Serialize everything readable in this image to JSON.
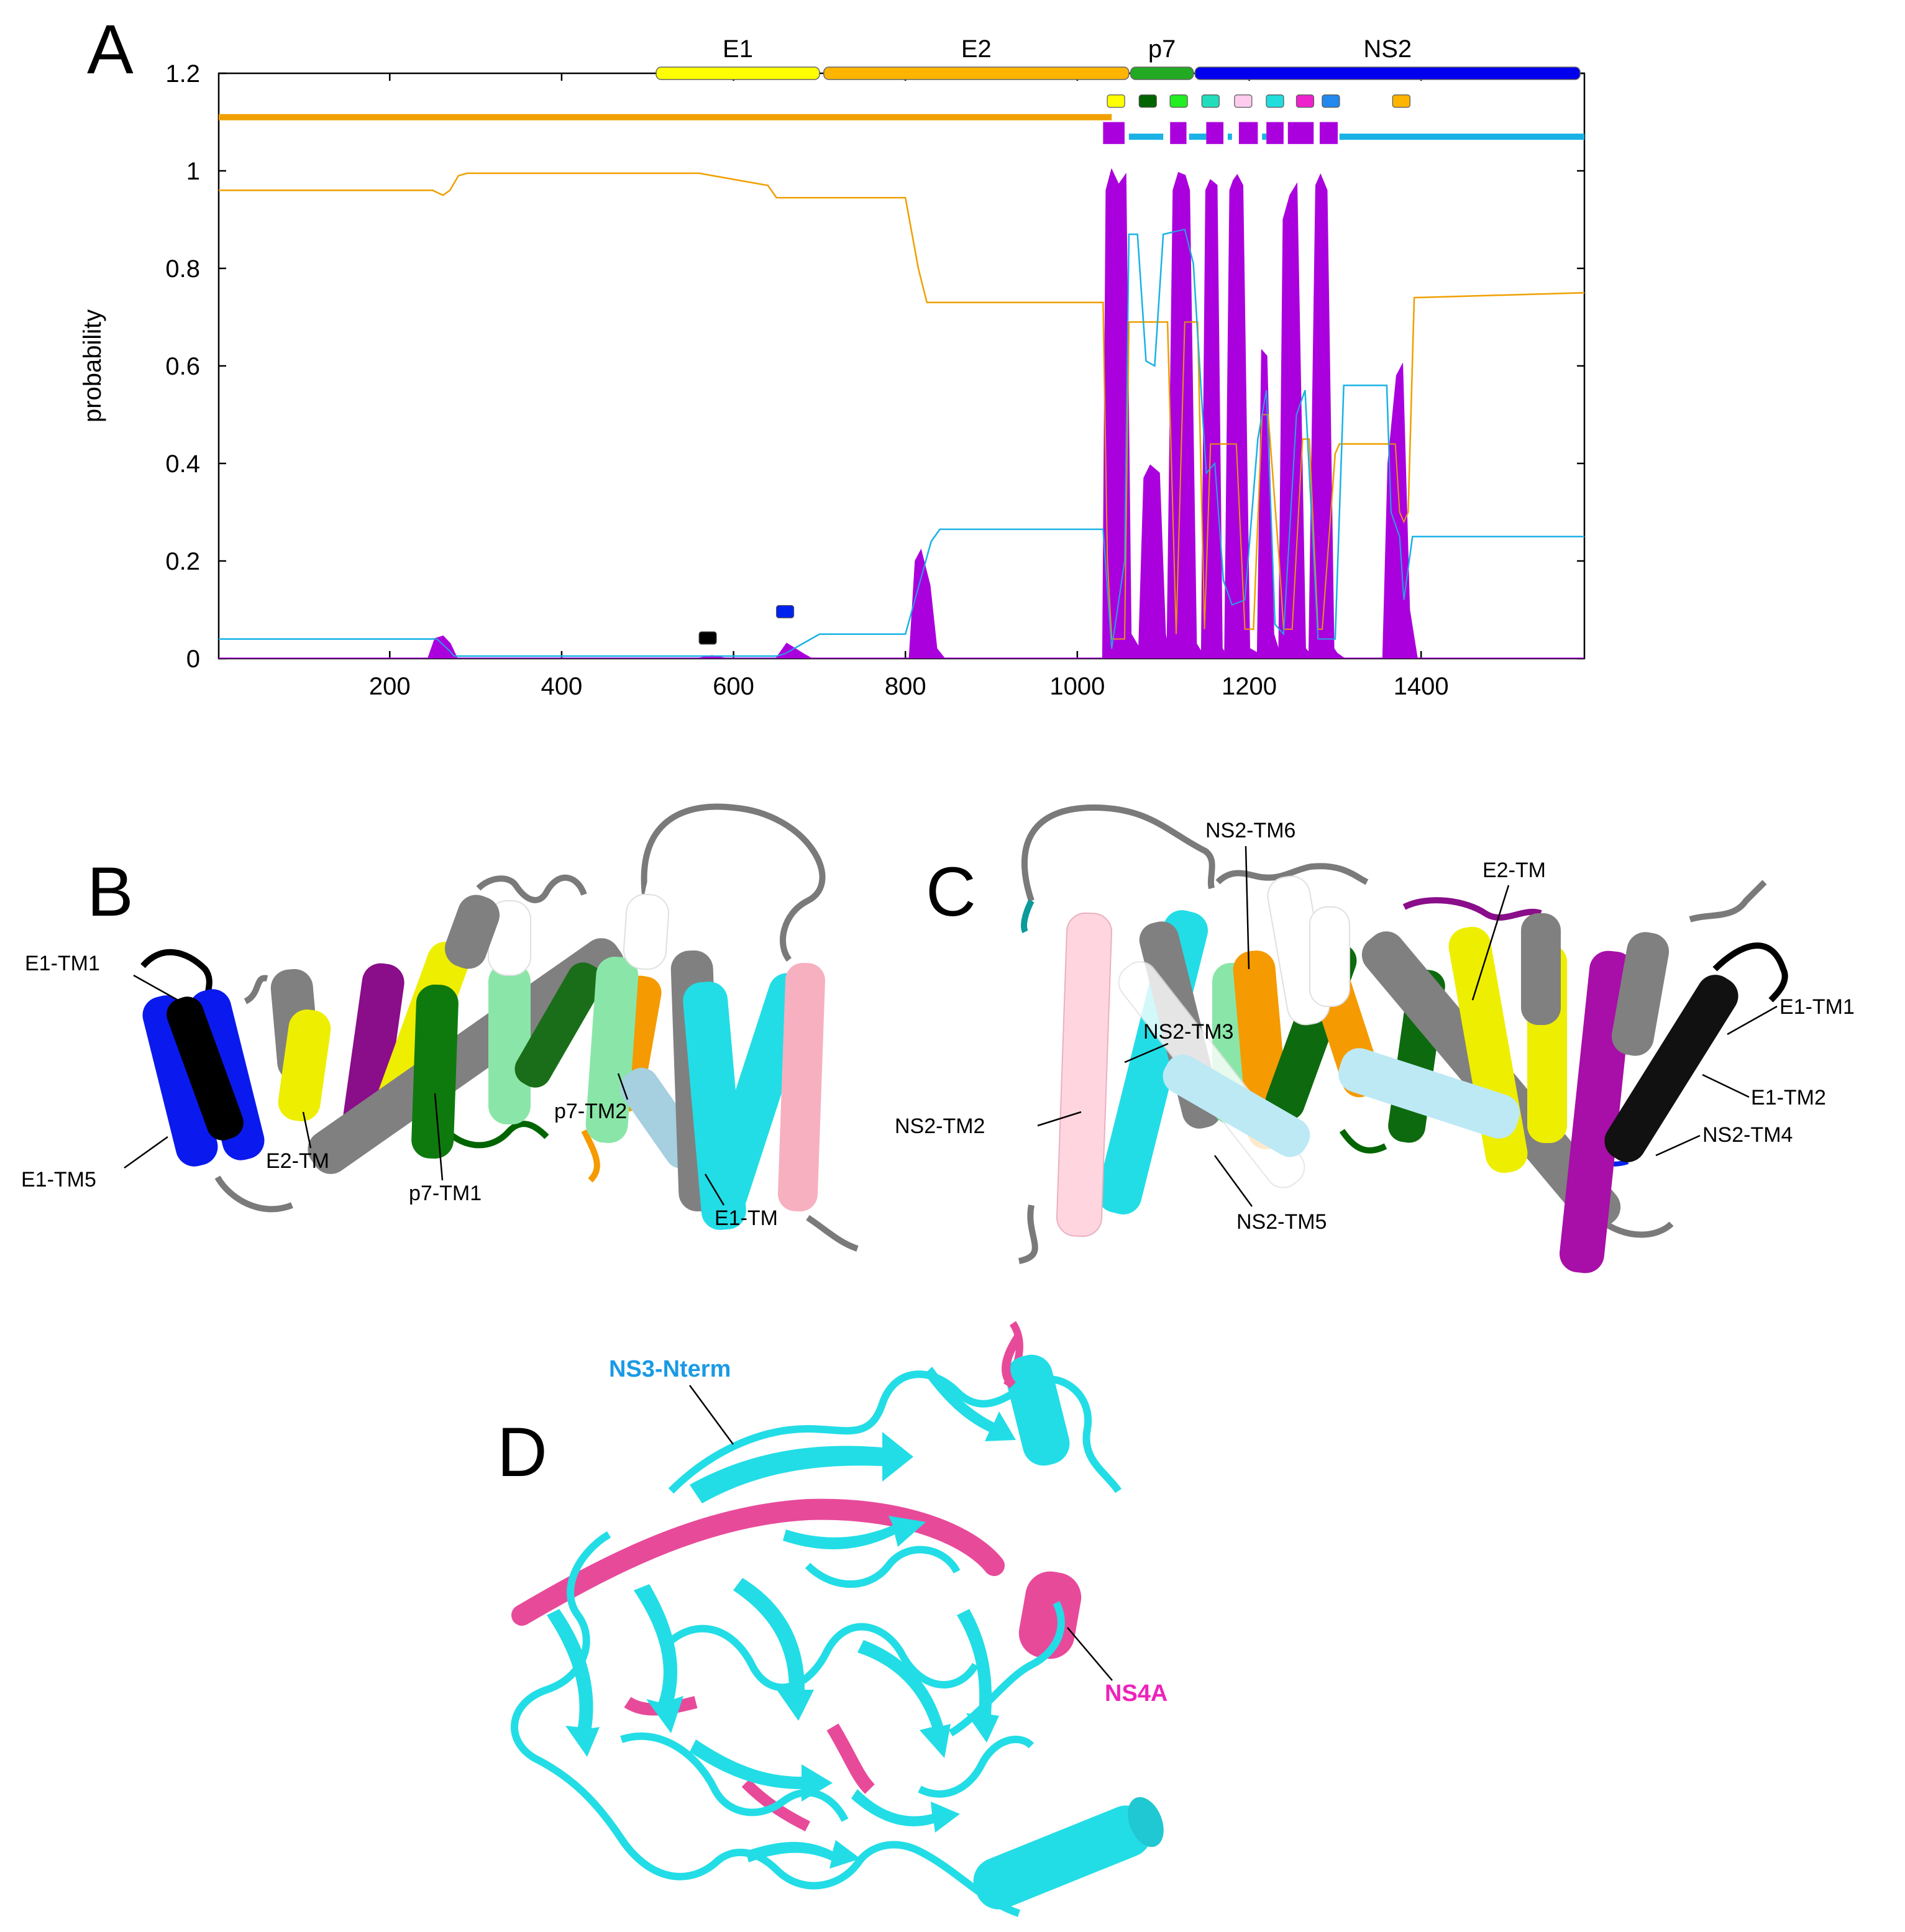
{
  "panels": {
    "a": "A",
    "b": "B",
    "c": "C",
    "d": "D"
  },
  "chart_data": {
    "type": "line",
    "ylabel": "probability",
    "xlabel": "",
    "xlim": [
      1,
      1590
    ],
    "ylim": [
      0,
      1.2
    ],
    "x_ticks": [
      200,
      400,
      600,
      800,
      1000,
      1200,
      1400
    ],
    "y_ticks": [
      "0",
      "0.2",
      "0.4",
      "0.6",
      "0.8",
      "1",
      "1.2"
    ],
    "grid": false,
    "domains": [
      {
        "name": "E1",
        "start": 510,
        "end": 700,
        "color": "#ffff00"
      },
      {
        "name": "E2",
        "start": 705,
        "end": 1060,
        "color": "#ffb400"
      },
      {
        "name": "p7",
        "start": 1062,
        "end": 1135,
        "color": "#22aa22"
      },
      {
        "name": "NS2",
        "start": 1137,
        "end": 1585,
        "color": "#0000ee"
      }
    ],
    "helix_markers": [
      {
        "x": 1045,
        "color": "#ffff00"
      },
      {
        "x": 1082,
        "color": "#006400"
      },
      {
        "x": 1118,
        "color": "#22ee22"
      },
      {
        "x": 1155,
        "color": "#22ddbb"
      },
      {
        "x": 1193,
        "color": "#ffccee"
      },
      {
        "x": 1230,
        "color": "#22dddd"
      },
      {
        "x": 1265,
        "color": "#ee22cc"
      },
      {
        "x": 1295,
        "color": "#2288ee"
      },
      {
        "x": 1377,
        "color": "#ffb400"
      },
      {
        "x": 570,
        "y": 0.042,
        "color": "#000000"
      },
      {
        "x": 660,
        "y": 0.096,
        "color": "#0022ee"
      }
    ],
    "topology_tracks": [
      {
        "color": "#f0a000",
        "y": 1.11,
        "segments": [
          [
            1,
            1040
          ]
        ]
      },
      {
        "color": "#1ab2e6",
        "y": 1.07,
        "segments": [
          [
            1060,
            1100
          ],
          [
            1130,
            1150
          ],
          [
            1175,
            1180
          ],
          [
            1215,
            1220
          ],
          [
            1252,
            1258
          ],
          [
            1305,
            1590
          ]
        ]
      }
    ],
    "tm_blocks": [
      [
        1030,
        1055
      ],
      [
        1108,
        1127
      ],
      [
        1150,
        1170
      ],
      [
        1188,
        1210
      ],
      [
        1220,
        1240
      ],
      [
        1245,
        1275
      ],
      [
        1282,
        1303
      ]
    ],
    "series": [
      {
        "color": "#f0a000",
        "x": [
          1,
          250,
          262,
          270,
          280,
          290,
          560,
          640,
          650,
          800,
          815,
          825,
          1030,
          1035,
          1040,
          1055,
          1060,
          1105,
          1115,
          1125,
          1140,
          1148,
          1155,
          1185,
          1195,
          1205,
          1215,
          1222,
          1235,
          1240,
          1250,
          1262,
          1270,
          1280,
          1285,
          1300,
          1305,
          1370,
          1375,
          1380,
          1385,
          1392,
          1590
        ],
        "y": [
          0.96,
          0.96,
          0.95,
          0.96,
          0.99,
          0.995,
          0.995,
          0.97,
          0.945,
          0.945,
          0.8,
          0.73,
          0.73,
          0.2,
          0.04,
          0.04,
          0.69,
          0.69,
          0.05,
          0.69,
          0.69,
          0.06,
          0.44,
          0.44,
          0.06,
          0.06,
          0.5,
          0.5,
          0.2,
          0.06,
          0.06,
          0.45,
          0.45,
          0.06,
          0.06,
          0.42,
          0.44,
          0.44,
          0.3,
          0.28,
          0.3,
          0.74,
          0.75
        ]
      },
      {
        "color": "#1ab2e6",
        "x": [
          1,
          255,
          270,
          275,
          650,
          660,
          700,
          800,
          830,
          840,
          1030,
          1040,
          1055,
          1060,
          1070,
          1080,
          1090,
          1100,
          1125,
          1135,
          1150,
          1160,
          1170,
          1180,
          1195,
          1210,
          1220,
          1230,
          1240,
          1255,
          1265,
          1280,
          1300,
          1310,
          1360,
          1365,
          1375,
          1380,
          1390,
          1590
        ],
        "y": [
          0.04,
          0.04,
          0.015,
          0.005,
          0.005,
          0.01,
          0.05,
          0.05,
          0.24,
          0.265,
          0.265,
          0.02,
          0.2,
          0.87,
          0.87,
          0.61,
          0.6,
          0.87,
          0.88,
          0.81,
          0.38,
          0.4,
          0.16,
          0.11,
          0.12,
          0.45,
          0.55,
          0.07,
          0.05,
          0.5,
          0.55,
          0.04,
          0.04,
          0.56,
          0.56,
          0.3,
          0.25,
          0.12,
          0.25,
          0.25
        ]
      },
      {
        "color": "#aa00dd",
        "x": [
          1,
          245,
          253,
          262,
          270,
          278,
          560,
          575,
          590,
          650,
          662,
          680,
          690,
          805,
          812,
          818,
          828,
          836,
          845,
          1030,
          1034,
          1040,
          1048,
          1056,
          1062,
          1072,
          1078,
          1085,
          1095,
          1102,
          1105,
          1112,
          1118,
          1125,
          1130,
          1138,
          1145,
          1150,
          1155,
          1162,
          1168,
          1172,
          1178,
          1182,
          1186,
          1192,
          1200,
          1210,
          1215,
          1220,
          1228,
          1235,
          1240,
          1248,
          1255,
          1265,
          1270,
          1278,
          1283,
          1290,
          1298,
          1302,
          1310,
          1356,
          1362,
          1372,
          1378,
          1386,
          1395,
          1590
        ],
        "y": [
          0,
          0,
          0.04,
          0.045,
          0.03,
          0,
          0,
          0.005,
          0,
          0,
          0.03,
          0.01,
          0,
          0,
          0.2,
          0.22,
          0.15,
          0.02,
          0,
          0,
          0.96,
          1.0,
          0.97,
          0.99,
          0.05,
          0.02,
          0.37,
          0.395,
          0.38,
          0.05,
          0.02,
          0.96,
          0.995,
          0.99,
          0.96,
          0.03,
          0.01,
          0.96,
          0.98,
          0.97,
          0.02,
          0.01,
          0.96,
          0.98,
          0.99,
          0.97,
          0.02,
          0.01,
          0.63,
          0.62,
          0.05,
          0.01,
          0.9,
          0.95,
          0.97,
          0.02,
          0.01,
          0.97,
          0.99,
          0.96,
          0.02,
          0.01,
          0,
          0,
          0.4,
          0.58,
          0.6,
          0.1,
          0,
          0
        ]
      }
    ]
  },
  "panel_b": {
    "labels": {
      "e1_tm1": "E1-TM1",
      "e1_tm5": "E1-TM5",
      "e2_tm": "E2-TM",
      "p7_tm1": "p7-TM1",
      "p7_tm2": "p7-TM2",
      "e1_tm": "E1-TM"
    }
  },
  "panel_c": {
    "labels": {
      "ns2_tm6": "NS2-TM6",
      "e2_tm": "E2-TM",
      "ns2_tm3": "NS2-TM3",
      "e1_tm1": "E1-TM1",
      "e1_tm2": "E1-TM2",
      "ns2_tm2": "NS2-TM2",
      "ns2_tm4": "NS2-TM4",
      "ns2_tm5": "NS2-TM5"
    }
  },
  "panel_d": {
    "labels": {
      "ns3_nterm": "NS3-Nterm",
      "ns4a": "NS4A"
    },
    "colors": {
      "ns3": "#22dde6",
      "ns4a": "#e84a9a",
      "ns3_label": "#1a9ae6",
      "ns4a_label": "#ee22bb"
    }
  },
  "colors": {
    "helix_grey": "#808080",
    "loop_grey": "#7a7a7a"
  }
}
